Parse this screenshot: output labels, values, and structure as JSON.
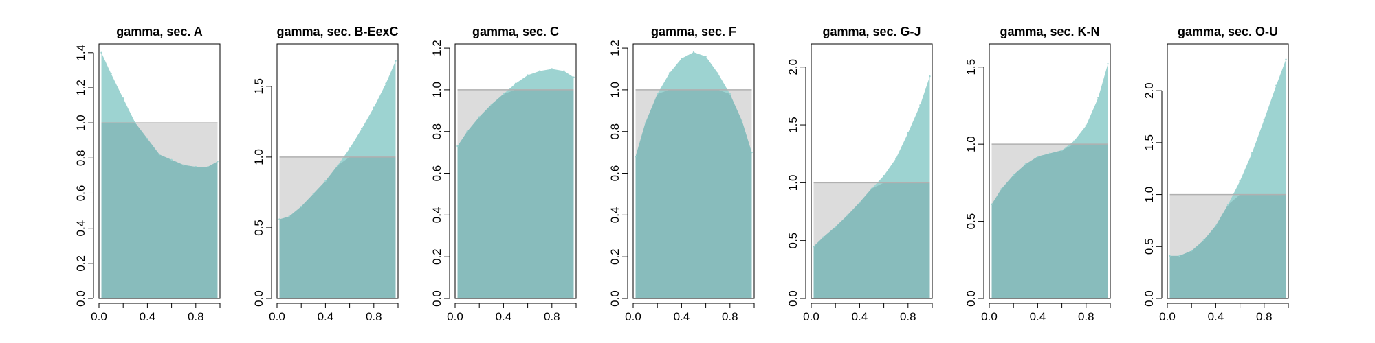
{
  "colors": {
    "density_fill": "#9dd3d1",
    "reference_fill": "#dcdcdc",
    "overlap_fill": "#88bcbc",
    "reference_line": "#b0b0b0",
    "axis": "#000000"
  },
  "chart_data": [
    {
      "type": "area",
      "title": "gamma, sec. A",
      "xlabel": "",
      "ylabel": "",
      "xlim": [
        0,
        1
      ],
      "ylim": [
        0,
        1.45
      ],
      "xticks": [
        0.0,
        0.4,
        0.8
      ],
      "xtick_labels": [
        "0.0",
        "0.4",
        "0.8"
      ],
      "yticks": [
        0.0,
        0.2,
        0.4,
        0.6,
        0.8,
        1.0,
        1.2,
        1.4
      ],
      "ytick_labels": [
        "0.0",
        "0.2",
        "0.4",
        "0.6",
        "0.8",
        "1.0",
        "1.2",
        "1.4"
      ],
      "reference_density": 1.0,
      "x": [
        0.02,
        0.1,
        0.2,
        0.3,
        0.4,
        0.5,
        0.6,
        0.7,
        0.8,
        0.9,
        0.98
      ],
      "y": [
        1.4,
        1.28,
        1.14,
        1.0,
        0.91,
        0.82,
        0.79,
        0.76,
        0.75,
        0.75,
        0.78
      ]
    },
    {
      "type": "area",
      "title": "gamma, sec. B-EexC",
      "xlabel": "",
      "ylabel": "",
      "xlim": [
        0,
        1
      ],
      "ylim": [
        0,
        1.8
      ],
      "xticks": [
        0.0,
        0.4,
        0.8
      ],
      "xtick_labels": [
        "0.0",
        "0.4",
        "0.8"
      ],
      "yticks": [
        0.0,
        0.5,
        1.0,
        1.5
      ],
      "ytick_labels": [
        "0.0",
        "0.5",
        "1.0",
        "1.5"
      ],
      "reference_density": 1.0,
      "x": [
        0.02,
        0.1,
        0.2,
        0.3,
        0.4,
        0.5,
        0.6,
        0.7,
        0.8,
        0.9,
        0.98
      ],
      "y": [
        0.56,
        0.58,
        0.65,
        0.74,
        0.83,
        0.94,
        1.06,
        1.2,
        1.35,
        1.52,
        1.68
      ]
    },
    {
      "type": "area",
      "title": "gamma, sec. C",
      "xlabel": "",
      "ylabel": "",
      "xlim": [
        0,
        1
      ],
      "ylim": [
        0,
        1.22
      ],
      "xticks": [
        0.0,
        0.4,
        0.8
      ],
      "xtick_labels": [
        "0.0",
        "0.4",
        "0.8"
      ],
      "yticks": [
        0.0,
        0.2,
        0.4,
        0.6,
        0.8,
        1.0,
        1.2
      ],
      "ytick_labels": [
        "0.0",
        "0.2",
        "0.4",
        "0.6",
        "0.8",
        "1.0",
        "1.2"
      ],
      "reference_density": 1.0,
      "x": [
        0.02,
        0.1,
        0.2,
        0.3,
        0.4,
        0.5,
        0.6,
        0.7,
        0.8,
        0.9,
        0.98
      ],
      "y": [
        0.73,
        0.8,
        0.87,
        0.93,
        0.98,
        1.03,
        1.07,
        1.09,
        1.1,
        1.09,
        1.06
      ]
    },
    {
      "type": "area",
      "title": "gamma, sec. F",
      "xlabel": "",
      "ylabel": "",
      "xlim": [
        0,
        1
      ],
      "ylim": [
        0,
        1.22
      ],
      "xticks": [
        0.0,
        0.4,
        0.8
      ],
      "xtick_labels": [
        "0.0",
        "0.4",
        "0.8"
      ],
      "yticks": [
        0.0,
        0.2,
        0.4,
        0.6,
        0.8,
        1.0,
        1.2
      ],
      "ytick_labels": [
        "0.0",
        "0.2",
        "0.4",
        "0.6",
        "0.8",
        "1.0",
        "1.2"
      ],
      "reference_density": 1.0,
      "x": [
        0.02,
        0.1,
        0.2,
        0.3,
        0.4,
        0.5,
        0.6,
        0.7,
        0.8,
        0.9,
        0.98
      ],
      "y": [
        0.68,
        0.84,
        0.98,
        1.08,
        1.15,
        1.18,
        1.16,
        1.08,
        0.98,
        0.85,
        0.7
      ]
    },
    {
      "type": "area",
      "title": "gamma, sec. G-J",
      "xlabel": "",
      "ylabel": "",
      "xlim": [
        0,
        1
      ],
      "ylim": [
        0,
        2.2
      ],
      "xticks": [
        0.0,
        0.4,
        0.8
      ],
      "xtick_labels": [
        "0.0",
        "0.4",
        "0.8"
      ],
      "yticks": [
        0.0,
        0.5,
        1.0,
        1.5,
        2.0
      ],
      "ytick_labels": [
        "0.0",
        "0.5",
        "1.0",
        "1.5",
        "2.0"
      ],
      "reference_density": 1.0,
      "x": [
        0.02,
        0.1,
        0.2,
        0.3,
        0.4,
        0.5,
        0.6,
        0.7,
        0.8,
        0.9,
        0.98
      ],
      "y": [
        0.45,
        0.53,
        0.62,
        0.72,
        0.83,
        0.95,
        1.06,
        1.21,
        1.43,
        1.67,
        1.92
      ]
    },
    {
      "type": "area",
      "title": "gamma, sec. K-N",
      "xlabel": "",
      "ylabel": "",
      "xlim": [
        0,
        1
      ],
      "ylim": [
        0,
        1.65
      ],
      "xticks": [
        0.0,
        0.4,
        0.8
      ],
      "xtick_labels": [
        "0.0",
        "0.4",
        "0.8"
      ],
      "yticks": [
        0.0,
        0.5,
        1.0,
        1.5
      ],
      "ytick_labels": [
        "0.0",
        "0.5",
        "1.0",
        "1.5"
      ],
      "reference_density": 1.0,
      "x": [
        0.02,
        0.1,
        0.2,
        0.3,
        0.4,
        0.5,
        0.6,
        0.7,
        0.8,
        0.9,
        0.98
      ],
      "y": [
        0.61,
        0.71,
        0.8,
        0.87,
        0.92,
        0.94,
        0.96,
        1.02,
        1.12,
        1.3,
        1.52
      ]
    },
    {
      "type": "area",
      "title": "gamma, sec. O-U",
      "xlabel": "",
      "ylabel": "",
      "xlim": [
        0,
        1
      ],
      "ylim": [
        0,
        2.45
      ],
      "xticks": [
        0.0,
        0.4,
        0.8
      ],
      "xtick_labels": [
        "0.0",
        "0.4",
        "0.8"
      ],
      "yticks": [
        0.0,
        0.5,
        1.0,
        1.5,
        2.0
      ],
      "ytick_labels": [
        "0.0",
        "0.5",
        "1.0",
        "1.5",
        "2.0"
      ],
      "reference_density": 1.0,
      "x": [
        0.02,
        0.1,
        0.2,
        0.3,
        0.4,
        0.5,
        0.6,
        0.7,
        0.8,
        0.9,
        0.98
      ],
      "y": [
        0.41,
        0.41,
        0.46,
        0.56,
        0.7,
        0.9,
        1.13,
        1.4,
        1.72,
        2.05,
        2.3
      ]
    }
  ]
}
